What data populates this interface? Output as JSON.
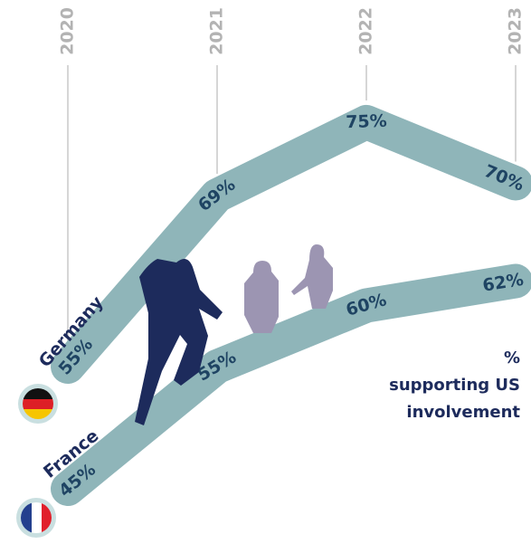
{
  "chart_data": {
    "type": "line",
    "categories": [
      "2020",
      "2021",
      "2022",
      "2023"
    ],
    "series": [
      {
        "name": "Germany",
        "color": "#8fb5b9",
        "values": [
          55,
          69,
          75,
          70
        ],
        "value_labels": [
          "55%",
          "69%",
          "75%",
          "70%"
        ]
      },
      {
        "name": "France",
        "color": "#8fb5b9",
        "values": [
          45,
          55,
          60,
          62
        ],
        "value_labels": [
          "45%",
          "55%",
          "60%",
          "62%"
        ]
      }
    ],
    "annotation": [
      "%",
      "supporting US",
      "involvement"
    ]
  }
}
